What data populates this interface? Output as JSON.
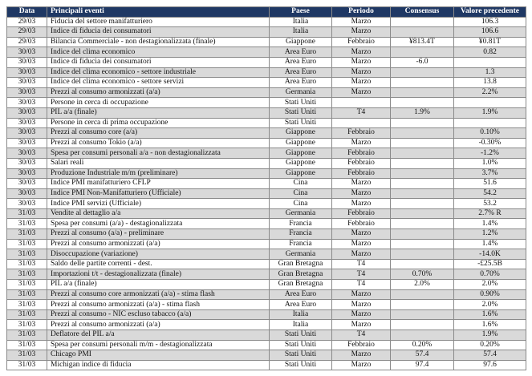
{
  "table": {
    "header": [
      "Data",
      "Principali eventi",
      "Paese",
      "Periodo",
      "Consensus",
      "Valore precedente"
    ],
    "rows": [
      [
        "29/03",
        "Fiducia del settore manifatturiero",
        "Italia",
        "Marzo",
        null,
        "106.3"
      ],
      [
        "29/03",
        "Indice di fiducia dei consumatori",
        "Italia",
        "Marzo",
        null,
        "106.6"
      ],
      [
        "29/03",
        "Bilancia Commerciale - non destagionalizzata (finale)",
        "Giappone",
        "Febbraio",
        "¥813.4T",
        "¥0.81T"
      ],
      [
        "30/03",
        "Indice del clima economico",
        "Area Euro",
        "Marzo",
        null,
        "0.82"
      ],
      [
        "30/03",
        "Indice di fiducia dei consumatori",
        "Area Euro",
        "Marzo",
        "-6.0",
        null
      ],
      [
        "30/03",
        "Indice del clima economico - settore industriale",
        "Area Euro",
        "Marzo",
        null,
        "1.3"
      ],
      [
        "30/03",
        "Indice del clima economico - settore servizi",
        "Area Euro",
        "Marzo",
        null,
        "13.8"
      ],
      [
        "30/03",
        "Prezzi al consumo armonizzati (a/a)",
        "Germania",
        "Marzo",
        null,
        "2.2%"
      ],
      [
        "30/03",
        "Persone in cerca di occupazione",
        "Stati Uniti",
        null,
        null,
        null
      ],
      [
        "30/03",
        "PIL a/a (finale)",
        "Stati Uniti",
        "T4",
        "1.9%",
        "1.9%"
      ],
      [
        "30/03",
        "Persone in cerca di prima occupazione",
        "Stati Uniti",
        null,
        null,
        null
      ],
      [
        "30/03",
        "Prezzi al consumo core (a/a)",
        "Giappone",
        "Febbraio",
        null,
        "0.10%"
      ],
      [
        "30/03",
        "Prezzi al consumo Tokio (a/a)",
        "Giappone",
        "Marzo",
        null,
        "-0.30%"
      ],
      [
        "30/03",
        "Spesa per consumi personali a/a - non destagionalizzata",
        "Giappone",
        "Febbraio",
        null,
        "-1.2%"
      ],
      [
        "30/03",
        "Salari reali",
        "Giappone",
        "Febbraio",
        null,
        "1.0%"
      ],
      [
        "30/03",
        "Produzione Industriale m/m (preliminare)",
        "Giappone",
        "Febbraio",
        null,
        "3.7%"
      ],
      [
        "30/03",
        "Indice PMI manifatturiero CFLP",
        "Cina",
        "Marzo",
        null,
        "51.6"
      ],
      [
        "30/03",
        "Indice PMI Non-Manifatturiero (Ufficiale)",
        "Cina",
        "Marzo",
        null,
        "54.2"
      ],
      [
        "30/03",
        "Indice PMI servizi (Ufficiale)",
        "Cina",
        "Marzo",
        null,
        "53.2"
      ],
      [
        "31/03",
        "Vendite al dettaglio a/a",
        "Germania",
        "Febbraio",
        null,
        "2.7% R"
      ],
      [
        "31/03",
        "Spesa per consumi (a/a) - destagionalizzata",
        "Francia",
        "Febbraio",
        null,
        "1.4%"
      ],
      [
        "31/03",
        "Prezzi al consumo (a/a) - preliminare",
        "Francia",
        "Marzo",
        null,
        "1.2%"
      ],
      [
        "31/03",
        "Prezzi al consumo armonizzati (a/a)",
        "Francia",
        "Marzo",
        null,
        "1.4%"
      ],
      [
        "31/03",
        "Disoccupazione (variazione)",
        "Germania",
        "Marzo",
        null,
        "-14.0K"
      ],
      [
        "31/03",
        "Saldo delle partite correnti - dest.",
        "Gran Bretagna",
        "T4",
        null,
        "-£25.5B"
      ],
      [
        "31/03",
        "Importazioni t/t - destagionalizzata (finale)",
        "Gran Bretagna",
        "T4",
        "0.70%",
        "0.70%"
      ],
      [
        "31/03",
        "PIL a/a (finale)",
        "Gran Bretagna",
        "T4",
        "2.0%",
        "2.0%"
      ],
      [
        "31/03",
        "Prezzi al consumo core armonizzati (a/a) - stima flash",
        "Area Euro",
        "Marzo",
        null,
        "0.90%"
      ],
      [
        "31/03",
        "Prezzi al consumo armonizzati (a/a) - stima flash",
        "Area Euro",
        "Marzo",
        null,
        "2.0%"
      ],
      [
        "31/03",
        "Prezzi al consumo - NIC escluso tabacco (a/a)",
        "Italia",
        "Marzo",
        null,
        "1.6%"
      ],
      [
        "31/03",
        "Prezzi al consumo armonizzati (a/a)",
        "Italia",
        "Marzo",
        null,
        "1.6%"
      ],
      [
        "31/03",
        "Deflatore del PIL a/a",
        "Stati Uniti",
        "T4",
        null,
        "1.9%"
      ],
      [
        "31/03",
        "Spesa per consumi personali m/m - destagionalizzata",
        "Stati Uniti",
        "Febbraio",
        "0.20%",
        "0.20%"
      ],
      [
        "31/03",
        "Chicago PMI",
        "Stati Uniti",
        "Marzo",
        "57.4",
        "57.4"
      ],
      [
        "31/03",
        "Michigan indice di fiducia",
        "Stati Uniti",
        "Marzo",
        "97.4",
        "97.6"
      ]
    ]
  }
}
